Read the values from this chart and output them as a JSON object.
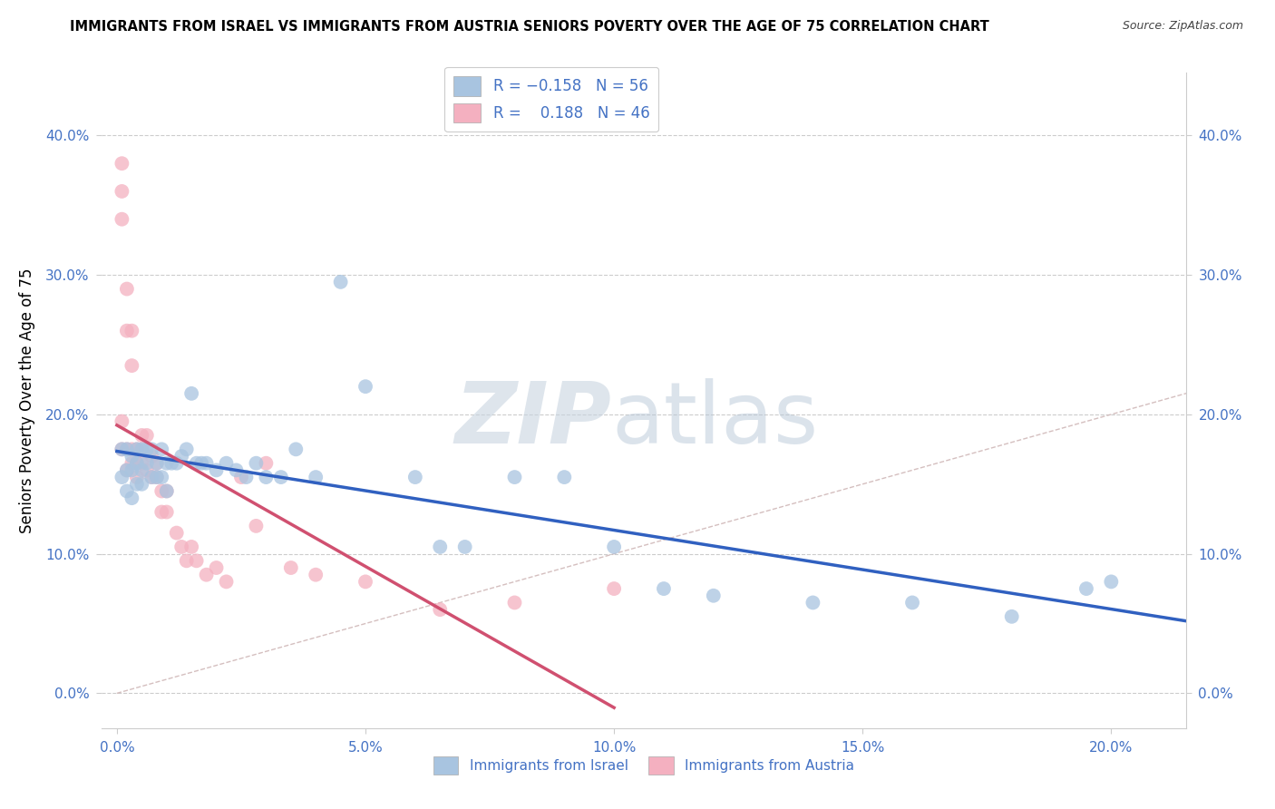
{
  "title": "IMMIGRANTS FROM ISRAEL VS IMMIGRANTS FROM AUSTRIA SENIORS POVERTY OVER THE AGE OF 75 CORRELATION CHART",
  "source": "Source: ZipAtlas.com",
  "ylabel": "Seniors Poverty Over the Age of 75",
  "xlabel_ticks": [
    "0.0%",
    "5.0%",
    "10.0%",
    "15.0%",
    "20.0%"
  ],
  "xlabel_vals": [
    0.0,
    0.05,
    0.1,
    0.15,
    0.2
  ],
  "ylabel_ticks": [
    "0.0%",
    "10.0%",
    "20.0%",
    "30.0%",
    "40.0%"
  ],
  "ylabel_vals": [
    0.0,
    0.1,
    0.2,
    0.3,
    0.4
  ],
  "xlim": [
    -0.003,
    0.215
  ],
  "ylim": [
    -0.025,
    0.445
  ],
  "israel_R": -0.158,
  "israel_N": 56,
  "austria_R": 0.188,
  "austria_N": 46,
  "israel_color": "#a8c4e0",
  "austria_color": "#f4b0c0",
  "israel_line_color": "#3060c0",
  "austria_line_color": "#d05070",
  "diag_color": "#ccbbbb",
  "israel_x": [
    0.001,
    0.001,
    0.002,
    0.002,
    0.002,
    0.003,
    0.003,
    0.003,
    0.004,
    0.004,
    0.004,
    0.005,
    0.005,
    0.005,
    0.006,
    0.006,
    0.007,
    0.007,
    0.008,
    0.008,
    0.009,
    0.009,
    0.01,
    0.01,
    0.011,
    0.012,
    0.013,
    0.014,
    0.015,
    0.016,
    0.017,
    0.018,
    0.02,
    0.022,
    0.024,
    0.026,
    0.028,
    0.03,
    0.033,
    0.036,
    0.04,
    0.045,
    0.05,
    0.06,
    0.065,
    0.07,
    0.08,
    0.09,
    0.1,
    0.11,
    0.12,
    0.14,
    0.16,
    0.18,
    0.195,
    0.2
  ],
  "israel_y": [
    0.175,
    0.155,
    0.175,
    0.16,
    0.145,
    0.17,
    0.16,
    0.14,
    0.175,
    0.165,
    0.15,
    0.175,
    0.16,
    0.15,
    0.175,
    0.165,
    0.175,
    0.155,
    0.165,
    0.155,
    0.175,
    0.155,
    0.165,
    0.145,
    0.165,
    0.165,
    0.17,
    0.175,
    0.215,
    0.165,
    0.165,
    0.165,
    0.16,
    0.165,
    0.16,
    0.155,
    0.165,
    0.155,
    0.155,
    0.175,
    0.155,
    0.295,
    0.22,
    0.155,
    0.105,
    0.105,
    0.155,
    0.155,
    0.105,
    0.075,
    0.07,
    0.065,
    0.065,
    0.055,
    0.075,
    0.08
  ],
  "austria_x": [
    0.001,
    0.001,
    0.001,
    0.001,
    0.001,
    0.002,
    0.002,
    0.002,
    0.002,
    0.003,
    0.003,
    0.003,
    0.003,
    0.004,
    0.004,
    0.004,
    0.005,
    0.005,
    0.005,
    0.006,
    0.006,
    0.007,
    0.007,
    0.008,
    0.008,
    0.009,
    0.009,
    0.01,
    0.01,
    0.012,
    0.013,
    0.014,
    0.015,
    0.016,
    0.018,
    0.02,
    0.022,
    0.025,
    0.028,
    0.03,
    0.035,
    0.04,
    0.05,
    0.065,
    0.08,
    0.1
  ],
  "austria_y": [
    0.38,
    0.36,
    0.34,
    0.195,
    0.175,
    0.29,
    0.26,
    0.175,
    0.16,
    0.26,
    0.235,
    0.175,
    0.165,
    0.175,
    0.165,
    0.155,
    0.185,
    0.175,
    0.165,
    0.185,
    0.16,
    0.17,
    0.155,
    0.165,
    0.155,
    0.145,
    0.13,
    0.145,
    0.13,
    0.115,
    0.105,
    0.095,
    0.105,
    0.095,
    0.085,
    0.09,
    0.08,
    0.155,
    0.12,
    0.165,
    0.09,
    0.085,
    0.08,
    0.06,
    0.065,
    0.075
  ],
  "background_color": "#ffffff",
  "grid_color": "#cccccc",
  "watermark_zip": "ZIP",
  "watermark_atlas": "atlas",
  "watermark_zip_color": "#c8d4e0",
  "watermark_atlas_color": "#b8c8d8"
}
